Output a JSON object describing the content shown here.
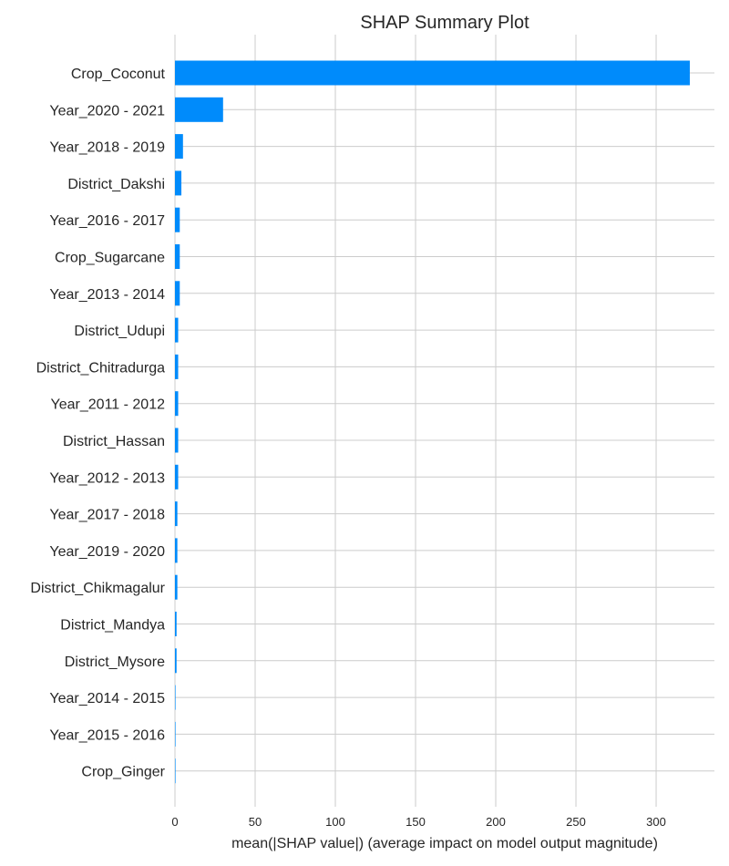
{
  "chart_data": {
    "type": "bar",
    "orientation": "horizontal",
    "title": "SHAP Summary Plot",
    "xlabel": "mean(|SHAP value|) (average impact on model output magnitude)",
    "ylabel": "",
    "xlim": [
      0,
      335
    ],
    "xticks": [
      0,
      50,
      100,
      150,
      200,
      250,
      300
    ],
    "grid": true,
    "bar_color": "#008bfb",
    "categories": [
      "Crop_Coconut",
      "Year_2020 - 2021",
      "Year_2018 - 2019",
      "District_Dakshi",
      "Year_2016 - 2017",
      "Crop_Sugarcane",
      "Year_2013 - 2014",
      "District_Udupi",
      "District_Chitradurga",
      "Year_2011 - 2012",
      "District_Hassan",
      "Year_2012 - 2013",
      "Year_2017 - 2018",
      "Year_2019 - 2020",
      "District_Chikmagalur",
      "District_Mandya",
      "District_Mysore",
      "Year_2014 - 2015",
      "Year_2015 - 2016",
      "Crop_Ginger"
    ],
    "values": [
      321,
      30,
      5,
      4,
      3,
      3,
      3,
      2,
      2,
      2,
      2,
      2,
      1.5,
      1.5,
      1.5,
      1,
      1,
      0.3,
      0.3,
      0.2
    ]
  }
}
